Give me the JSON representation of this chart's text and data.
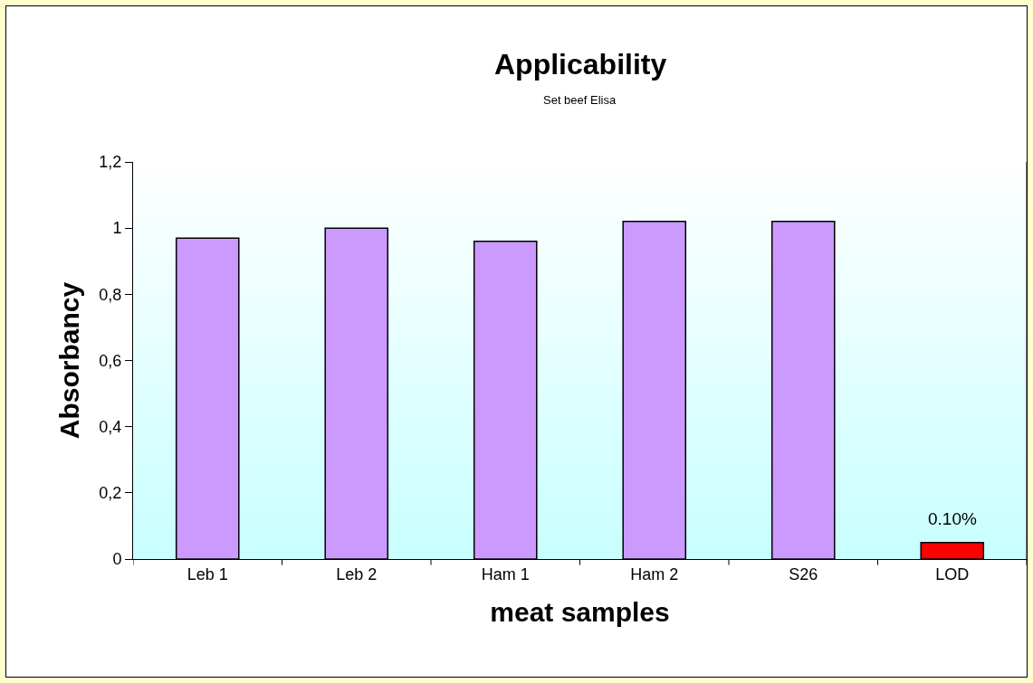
{
  "chart_data": {
    "type": "bar",
    "title": "Applicability",
    "subtitle": "Set beef Elisa",
    "xlabel": "meat samples",
    "ylabel": "Absorbancy",
    "categories": [
      "Leb 1",
      "Leb 2",
      "Ham 1",
      "Ham 2",
      "S26",
      "LOD"
    ],
    "values": [
      0.97,
      1.0,
      0.96,
      1.02,
      1.02,
      0.05
    ],
    "colors": [
      "#cc99ff",
      "#cc99ff",
      "#cc99ff",
      "#cc99ff",
      "#cc99ff",
      "#ff0000"
    ],
    "ylim": [
      0,
      1.2
    ],
    "yticks": [
      0,
      {
        "value": 0.2,
        "label": "0,2"
      },
      {
        "value": 0.4,
        "label": "0,4"
      },
      {
        "value": 0.6,
        "label": "0,6"
      },
      {
        "value": 0.8,
        "label": "0,8"
      },
      1,
      {
        "value": 1.2,
        "label": "1,2"
      }
    ],
    "annotations": [
      {
        "text": "0.10%",
        "x": "LOD",
        "y": 0.05
      }
    ],
    "grid": false
  }
}
